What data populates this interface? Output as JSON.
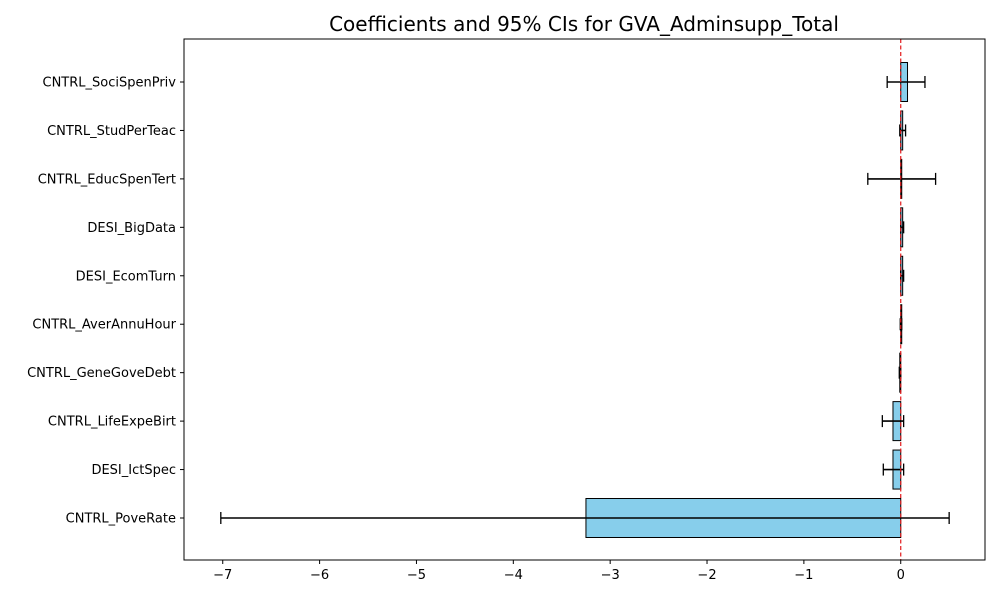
{
  "chart_data": {
    "type": "bar",
    "orientation": "horizontal",
    "title": "Coefficients and 95% CIs for GVA_Adminsupp_Total",
    "xlabel": "",
    "ylabel": "",
    "xlim": [
      -7.4,
      0.87
    ],
    "xticks": [
      -7,
      -6,
      -5,
      -4,
      -3,
      -2,
      -1,
      0
    ],
    "xtick_labels": [
      "−7",
      "−6",
      "−5",
      "−4",
      "−3",
      "−2",
      "−1",
      "0"
    ],
    "categories": [
      "CNTRL_SociSpenPriv",
      "CNTRL_StudPerTeac",
      "CNTRL_EducSpenTert",
      "DESI_BigData",
      "DESI_EcomTurn",
      "CNTRL_AverAnnuHour",
      "CNTRL_GeneGoveDebt",
      "CNTRL_LifeExpeBirt",
      "DESI_IctSpec",
      "CNTRL_PoveRate"
    ],
    "values": [
      0.07,
      0.02,
      0.01,
      0.02,
      0.02,
      0.005,
      -0.01,
      -0.08,
      -0.08,
      -3.25
    ],
    "ci_lower": [
      -0.14,
      -0.01,
      -0.34,
      0.0,
      0.0,
      -0.005,
      -0.015,
      -0.19,
      -0.18,
      -7.02
    ],
    "ci_upper": [
      0.25,
      0.05,
      0.36,
      0.03,
      0.03,
      0.01,
      0.0,
      0.03,
      0.03,
      0.5
    ],
    "reference_line": 0,
    "grid": false,
    "bar_color": "#87CEEB",
    "edge_color": "#000000",
    "reference_line_color": "#E31A1C"
  }
}
